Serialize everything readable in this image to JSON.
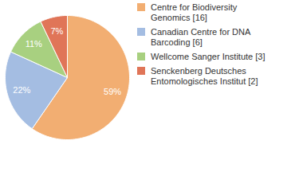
{
  "chart_data": {
    "type": "pie",
    "categories": [
      "Centre for Biodiversity Genomics [16]",
      "Canadian Centre for DNA Barcoding [6]",
      "Wellcome Sanger Institute [3]",
      "Senckenberg Deutsches Entomologisches Institut [2]"
    ],
    "values": [
      59,
      22,
      11,
      7
    ],
    "value_labels": [
      "59%",
      "22%",
      "11%",
      "7%"
    ],
    "colors": [
      "#f2ae72",
      "#a4bde2",
      "#a8d080",
      "#e07558"
    ],
    "data_labels": true,
    "legend": "right"
  }
}
